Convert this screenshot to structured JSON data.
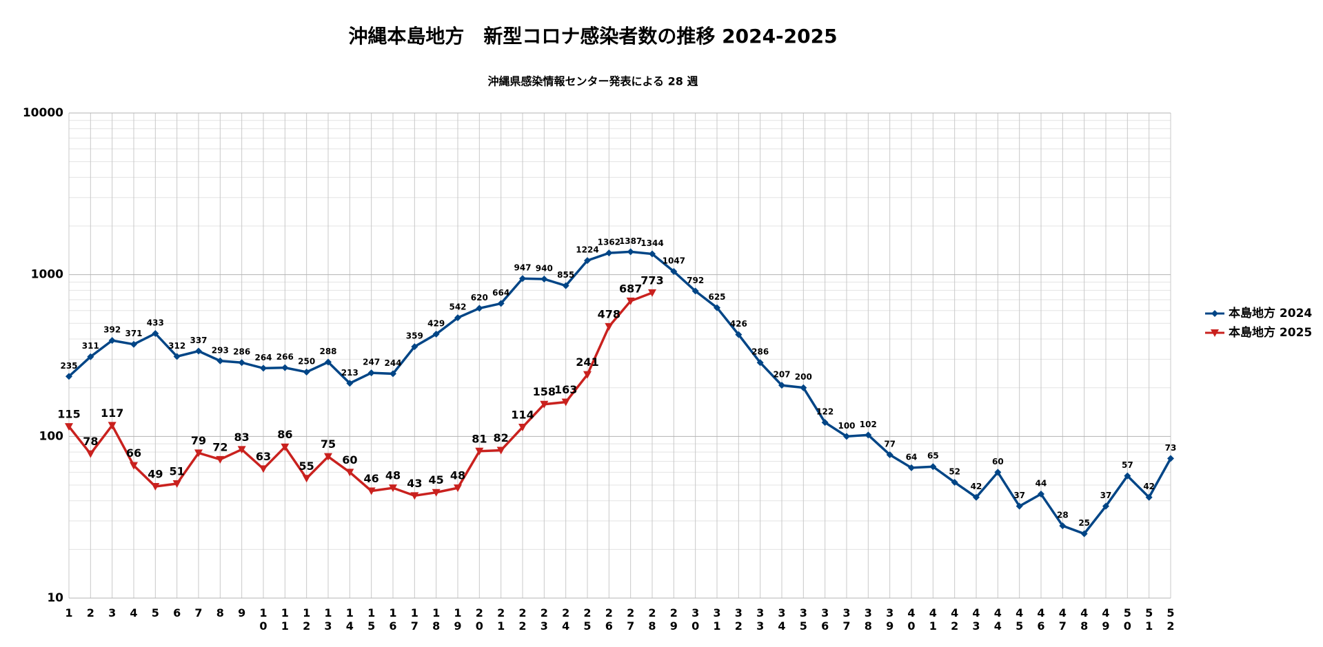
{
  "chart_data": {
    "type": "line",
    "title": "沖縄本島地方　新型コロナ感染者数の推移 2024-2025",
    "subtitle": "沖縄県感染情報センター発表による 28 週",
    "categories": [
      "1",
      "2",
      "3",
      "4",
      "5",
      "6",
      "7",
      "8",
      "9",
      "10",
      "11",
      "12",
      "13",
      "14",
      "15",
      "16",
      "17",
      "18",
      "19",
      "20",
      "21",
      "22",
      "23",
      "24",
      "25",
      "26",
      "27",
      "28",
      "29",
      "30",
      "31",
      "32",
      "33",
      "34",
      "35",
      "36",
      "37",
      "38",
      "39",
      "40",
      "41",
      "42",
      "43",
      "44",
      "45",
      "46",
      "47",
      "48",
      "49",
      "50",
      "51",
      "52"
    ],
    "series": [
      {
        "name": "本島地方 2024",
        "color": "#004586",
        "marker": "diamond",
        "values": [
          235,
          311,
          392,
          371,
          433,
          312,
          337,
          293,
          286,
          264,
          266,
          250,
          288,
          213,
          247,
          244,
          359,
          429,
          542,
          620,
          664,
          947,
          940,
          855,
          1224,
          1362,
          1387,
          1344,
          1047,
          792,
          625,
          426,
          286,
          207,
          200,
          122,
          100,
          102,
          77,
          64,
          65,
          52,
          42,
          60,
          37,
          44,
          28,
          25,
          37,
          57,
          42,
          73
        ]
      },
      {
        "name": "本島地方 2025",
        "color": "#c9211e",
        "marker": "triangle-down",
        "values": [
          115,
          78,
          117,
          66,
          49,
          51,
          79,
          72,
          83,
          63,
          86,
          55,
          75,
          60,
          46,
          48,
          43,
          45,
          48,
          81,
          82,
          114,
          158,
          163,
          241,
          478,
          687,
          773,
          null,
          null,
          null,
          null,
          null,
          null,
          null,
          null,
          null,
          null,
          null,
          null,
          null,
          null,
          null,
          null,
          null,
          null,
          null,
          null,
          null,
          null,
          null,
          null
        ]
      }
    ],
    "ylim": [
      10,
      10000
    ],
    "yticks": [
      10,
      100,
      1000,
      10000
    ],
    "log_y": true,
    "grid": true,
    "legend": "right"
  }
}
